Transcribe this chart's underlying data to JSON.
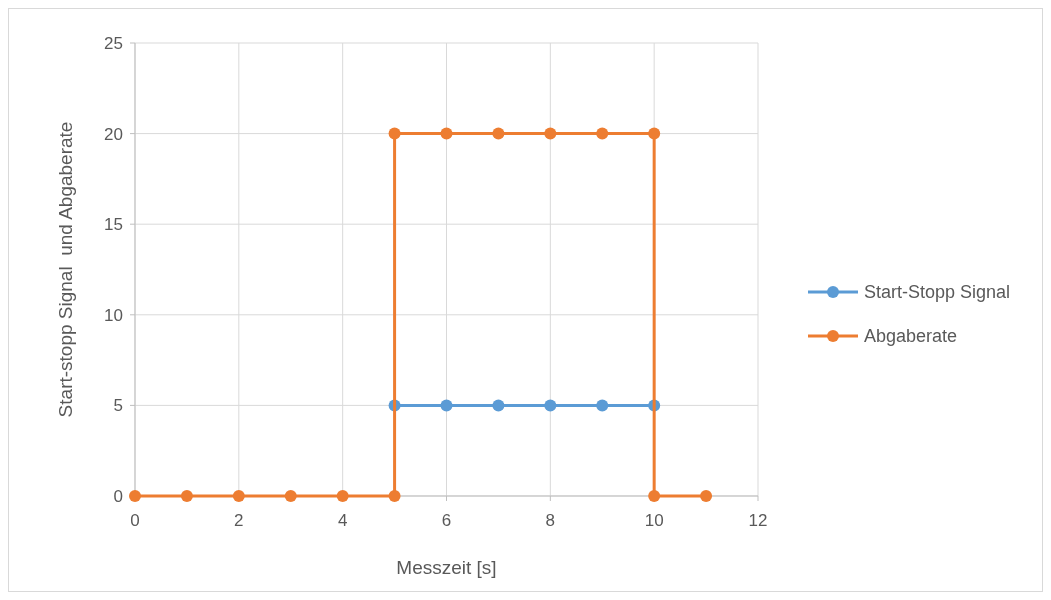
{
  "chart_data": {
    "type": "line",
    "xlabel": "Messzeit [s]",
    "ylabel": "Start-stopp Signal  und Abgaberate",
    "xlim": [
      0,
      12
    ],
    "xticks": [
      0,
      2,
      4,
      6,
      8,
      10,
      12
    ],
    "ylim": [
      0,
      25
    ],
    "yticks": [
      0,
      5,
      10,
      15,
      20,
      25
    ],
    "grid": true,
    "legend": "right",
    "marker": "circle",
    "line_style": "solid",
    "series": [
      {
        "name": "Start-Stopp Signal",
        "color": "#5b9bd5",
        "x": [
          5,
          6,
          7,
          8,
          9,
          10
        ],
        "values": [
          5,
          5,
          5,
          5,
          5,
          5
        ]
      },
      {
        "name": "Abgaberate",
        "color": "#ed7d31",
        "x": [
          0,
          1,
          2,
          3,
          4,
          5,
          5,
          6,
          7,
          8,
          9,
          10,
          10,
          11
        ],
        "values": [
          0,
          0,
          0,
          0,
          0,
          0,
          20,
          20,
          20,
          20,
          20,
          20,
          0,
          0
        ]
      }
    ]
  }
}
